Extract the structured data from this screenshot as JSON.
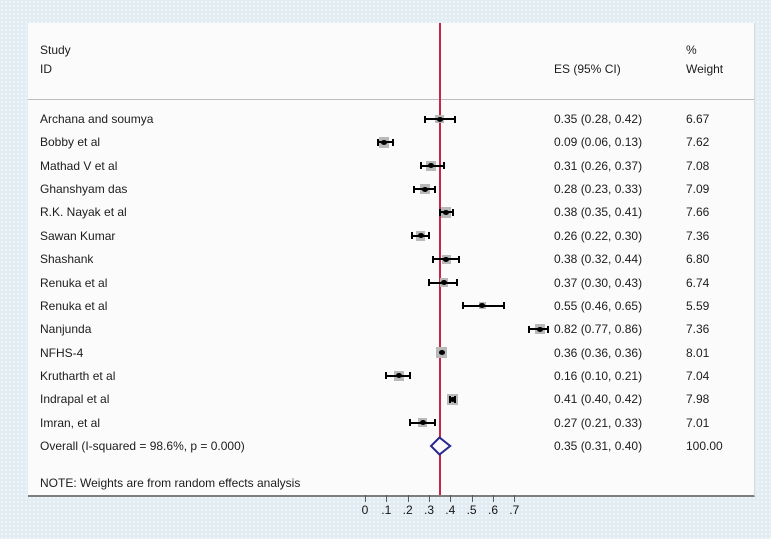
{
  "header": {
    "study_line1": "Study",
    "study_line2": "ID",
    "es": "ES (95% CI)",
    "weight_line1": "%",
    "weight_line2": "Weight"
  },
  "note": "NOTE: Weights are from random effects analysis",
  "colors": {
    "background": "#e2ecf3",
    "plot_background": "#fbfbfb",
    "reference_line": "#c62746",
    "diamond_outline": "#28288e",
    "weight_box": "#b9b9b9",
    "marker": "#000000",
    "text": "#1c1c1c"
  },
  "chart_data": {
    "type": "forest",
    "title": "",
    "xlabel": "",
    "axis": {
      "min": 0,
      "max": 0.7,
      "ticks": [
        0,
        0.1,
        0.2,
        0.3,
        0.4,
        0.5,
        0.6,
        0.7
      ],
      "tick_labels": [
        "0",
        ".1",
        ".2",
        ".3",
        ".4",
        ".5",
        ".6",
        ".7"
      ]
    },
    "reference_line_value": 0.35,
    "studies": [
      {
        "id": "Archana and soumya",
        "es": 0.35,
        "lo": 0.28,
        "hi": 0.42,
        "es_label": "0.35 (0.28, 0.42)",
        "weight": 6.67,
        "weight_label": "6.67"
      },
      {
        "id": "Bobby et al",
        "es": 0.09,
        "lo": 0.06,
        "hi": 0.13,
        "es_label": "0.09 (0.06, 0.13)",
        "weight": 7.62,
        "weight_label": "7.62"
      },
      {
        "id": "Mathad V et al",
        "es": 0.31,
        "lo": 0.26,
        "hi": 0.37,
        "es_label": "0.31 (0.26, 0.37)",
        "weight": 7.08,
        "weight_label": "7.08"
      },
      {
        "id": "Ghanshyam das",
        "es": 0.28,
        "lo": 0.23,
        "hi": 0.33,
        "es_label": "0.28 (0.23, 0.33)",
        "weight": 7.09,
        "weight_label": "7.09"
      },
      {
        "id": "R.K. Nayak et al",
        "es": 0.38,
        "lo": 0.35,
        "hi": 0.41,
        "es_label": "0.38 (0.35, 0.41)",
        "weight": 7.66,
        "weight_label": "7.66"
      },
      {
        "id": "Sawan Kumar",
        "es": 0.26,
        "lo": 0.22,
        "hi": 0.3,
        "es_label": "0.26 (0.22, 0.30)",
        "weight": 7.36,
        "weight_label": "7.36"
      },
      {
        "id": "Shashank",
        "es": 0.38,
        "lo": 0.32,
        "hi": 0.44,
        "es_label": "0.38 (0.32, 0.44)",
        "weight": 6.8,
        "weight_label": "6.80"
      },
      {
        "id": "Renuka et al",
        "es": 0.37,
        "lo": 0.3,
        "hi": 0.43,
        "es_label": "0.37 (0.30, 0.43)",
        "weight": 6.74,
        "weight_label": "6.74"
      },
      {
        "id": "Renuka et al",
        "es": 0.55,
        "lo": 0.46,
        "hi": 0.65,
        "es_label": "0.55 (0.46, 0.65)",
        "weight": 5.59,
        "weight_label": "5.59"
      },
      {
        "id": "Nanjunda",
        "es": 0.82,
        "lo": 0.77,
        "hi": 0.86,
        "es_label": "0.82 (0.77, 0.86)",
        "weight": 7.36,
        "weight_label": "7.36"
      },
      {
        "id": "NFHS-4",
        "es": 0.36,
        "lo": 0.36,
        "hi": 0.36,
        "es_label": "0.36 (0.36, 0.36)",
        "weight": 8.01,
        "weight_label": "8.01"
      },
      {
        "id": "Krutharth et al",
        "es": 0.16,
        "lo": 0.1,
        "hi": 0.21,
        "es_label": "0.16 (0.10, 0.21)",
        "weight": 7.04,
        "weight_label": "7.04"
      },
      {
        "id": "Indrapal et al",
        "es": 0.41,
        "lo": 0.4,
        "hi": 0.42,
        "es_label": "0.41 (0.40, 0.42)",
        "weight": 7.98,
        "weight_label": "7.98"
      },
      {
        "id": "Imran, et al",
        "es": 0.27,
        "lo": 0.21,
        "hi": 0.33,
        "es_label": "0.27 (0.21, 0.33)",
        "weight": 7.01,
        "weight_label": "7.01"
      }
    ],
    "overall": {
      "id": "Overall  (I-squared = 98.6%, p = 0.000)",
      "es": 0.35,
      "lo": 0.31,
      "hi": 0.4,
      "es_label": "0.35 (0.31, 0.40)",
      "weight_label": "100.00"
    }
  }
}
